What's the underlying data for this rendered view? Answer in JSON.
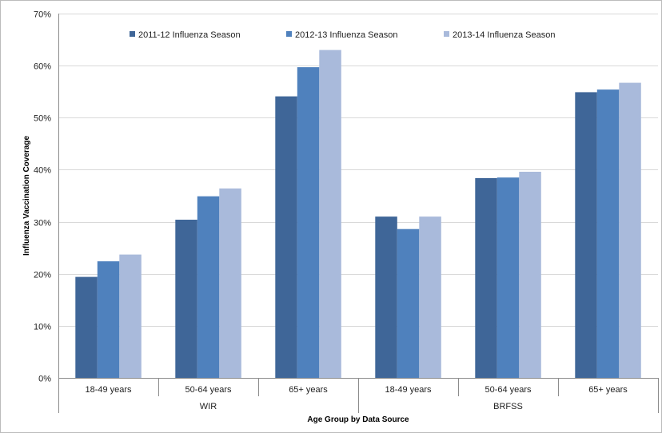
{
  "chart_data": {
    "type": "bar",
    "xlabel": "Age Group by Data Source",
    "ylabel": "Influenza Vaccination Coverage",
    "ylim": [
      0,
      70
    ],
    "yticks": [
      0,
      10,
      20,
      30,
      40,
      50,
      60,
      70
    ],
    "ytick_format": "%",
    "grid": true,
    "legend_position": "top",
    "groups": [
      {
        "label": "WIR",
        "categories": [
          "18-49 years",
          "50-64 years",
          "65+ years"
        ]
      },
      {
        "label": "BRFSS",
        "categories": [
          "18-49 years",
          "50-64 years",
          "65+ years"
        ]
      }
    ],
    "series": [
      {
        "name": "2011-12 Influenza Season",
        "color": "#3f6698",
        "values": [
          19.4,
          30.4,
          54.1,
          31.0,
          38.4,
          54.9
        ]
      },
      {
        "name": "2012-13 Influenza Season",
        "color": "#4f81bd",
        "values": [
          22.4,
          34.9,
          59.7,
          28.6,
          38.5,
          55.4
        ]
      },
      {
        "name": "2013-14 Influenza Season",
        "color": "#a9badb",
        "values": [
          23.7,
          36.4,
          63.0,
          31.0,
          39.6,
          56.7
        ]
      }
    ]
  }
}
